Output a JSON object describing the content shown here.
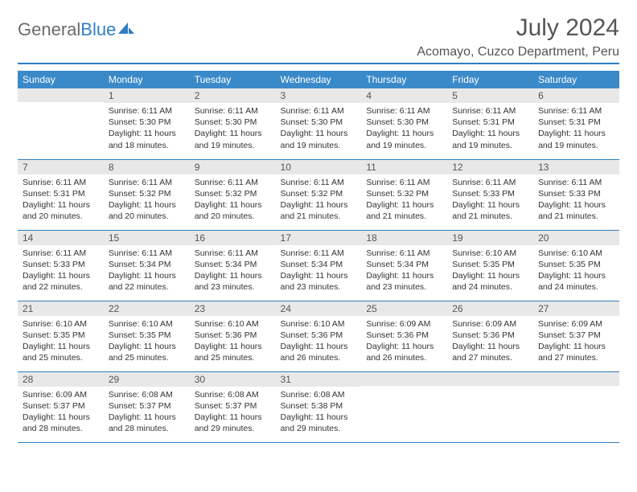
{
  "brand": {
    "part1": "General",
    "part2": "Blue"
  },
  "title": "July 2024",
  "location": "Acomayo, Cuzco Department, Peru",
  "colors": {
    "accent": "#3a8ac9",
    "border": "#2f7fc2",
    "dayHeader": "#e8e8e8",
    "text": "#333333",
    "titleText": "#555555"
  },
  "weekdays": [
    "Sunday",
    "Monday",
    "Tuesday",
    "Wednesday",
    "Thursday",
    "Friday",
    "Saturday"
  ],
  "weeks": [
    [
      {
        "n": "",
        "sr": "",
        "ss": "",
        "dl": ""
      },
      {
        "n": "1",
        "sr": "6:11 AM",
        "ss": "5:30 PM",
        "dl": "11 hours and 18 minutes."
      },
      {
        "n": "2",
        "sr": "6:11 AM",
        "ss": "5:30 PM",
        "dl": "11 hours and 19 minutes."
      },
      {
        "n": "3",
        "sr": "6:11 AM",
        "ss": "5:30 PM",
        "dl": "11 hours and 19 minutes."
      },
      {
        "n": "4",
        "sr": "6:11 AM",
        "ss": "5:30 PM",
        "dl": "11 hours and 19 minutes."
      },
      {
        "n": "5",
        "sr": "6:11 AM",
        "ss": "5:31 PM",
        "dl": "11 hours and 19 minutes."
      },
      {
        "n": "6",
        "sr": "6:11 AM",
        "ss": "5:31 PM",
        "dl": "11 hours and 19 minutes."
      }
    ],
    [
      {
        "n": "7",
        "sr": "6:11 AM",
        "ss": "5:31 PM",
        "dl": "11 hours and 20 minutes."
      },
      {
        "n": "8",
        "sr": "6:11 AM",
        "ss": "5:32 PM",
        "dl": "11 hours and 20 minutes."
      },
      {
        "n": "9",
        "sr": "6:11 AM",
        "ss": "5:32 PM",
        "dl": "11 hours and 20 minutes."
      },
      {
        "n": "10",
        "sr": "6:11 AM",
        "ss": "5:32 PM",
        "dl": "11 hours and 21 minutes."
      },
      {
        "n": "11",
        "sr": "6:11 AM",
        "ss": "5:32 PM",
        "dl": "11 hours and 21 minutes."
      },
      {
        "n": "12",
        "sr": "6:11 AM",
        "ss": "5:33 PM",
        "dl": "11 hours and 21 minutes."
      },
      {
        "n": "13",
        "sr": "6:11 AM",
        "ss": "5:33 PM",
        "dl": "11 hours and 21 minutes."
      }
    ],
    [
      {
        "n": "14",
        "sr": "6:11 AM",
        "ss": "5:33 PM",
        "dl": "11 hours and 22 minutes."
      },
      {
        "n": "15",
        "sr": "6:11 AM",
        "ss": "5:34 PM",
        "dl": "11 hours and 22 minutes."
      },
      {
        "n": "16",
        "sr": "6:11 AM",
        "ss": "5:34 PM",
        "dl": "11 hours and 23 minutes."
      },
      {
        "n": "17",
        "sr": "6:11 AM",
        "ss": "5:34 PM",
        "dl": "11 hours and 23 minutes."
      },
      {
        "n": "18",
        "sr": "6:11 AM",
        "ss": "5:34 PM",
        "dl": "11 hours and 23 minutes."
      },
      {
        "n": "19",
        "sr": "6:10 AM",
        "ss": "5:35 PM",
        "dl": "11 hours and 24 minutes."
      },
      {
        "n": "20",
        "sr": "6:10 AM",
        "ss": "5:35 PM",
        "dl": "11 hours and 24 minutes."
      }
    ],
    [
      {
        "n": "21",
        "sr": "6:10 AM",
        "ss": "5:35 PM",
        "dl": "11 hours and 25 minutes."
      },
      {
        "n": "22",
        "sr": "6:10 AM",
        "ss": "5:35 PM",
        "dl": "11 hours and 25 minutes."
      },
      {
        "n": "23",
        "sr": "6:10 AM",
        "ss": "5:36 PM",
        "dl": "11 hours and 25 minutes."
      },
      {
        "n": "24",
        "sr": "6:10 AM",
        "ss": "5:36 PM",
        "dl": "11 hours and 26 minutes."
      },
      {
        "n": "25",
        "sr": "6:09 AM",
        "ss": "5:36 PM",
        "dl": "11 hours and 26 minutes."
      },
      {
        "n": "26",
        "sr": "6:09 AM",
        "ss": "5:36 PM",
        "dl": "11 hours and 27 minutes."
      },
      {
        "n": "27",
        "sr": "6:09 AM",
        "ss": "5:37 PM",
        "dl": "11 hours and 27 minutes."
      }
    ],
    [
      {
        "n": "28",
        "sr": "6:09 AM",
        "ss": "5:37 PM",
        "dl": "11 hours and 28 minutes."
      },
      {
        "n": "29",
        "sr": "6:08 AM",
        "ss": "5:37 PM",
        "dl": "11 hours and 28 minutes."
      },
      {
        "n": "30",
        "sr": "6:08 AM",
        "ss": "5:37 PM",
        "dl": "11 hours and 29 minutes."
      },
      {
        "n": "31",
        "sr": "6:08 AM",
        "ss": "5:38 PM",
        "dl": "11 hours and 29 minutes."
      },
      {
        "n": "",
        "sr": "",
        "ss": "",
        "dl": ""
      },
      {
        "n": "",
        "sr": "",
        "ss": "",
        "dl": ""
      },
      {
        "n": "",
        "sr": "",
        "ss": "",
        "dl": ""
      }
    ]
  ],
  "labels": {
    "sunrise": "Sunrise:",
    "sunset": "Sunset:",
    "daylight": "Daylight:"
  }
}
